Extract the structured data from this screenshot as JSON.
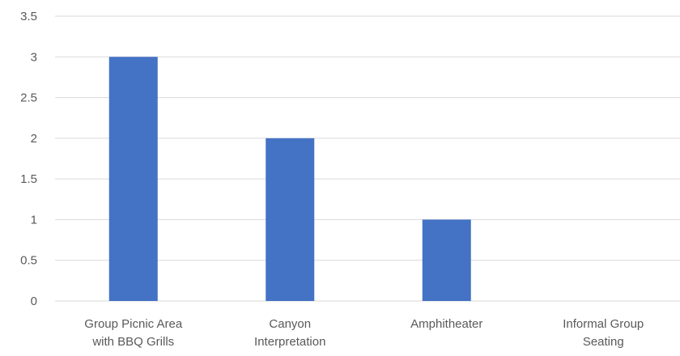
{
  "chart_data": {
    "type": "bar",
    "categories": [
      [
        "Group Picnic Area",
        "with BBQ Grills"
      ],
      [
        "Canyon",
        "Interpretation"
      ],
      [
        "Amphitheater"
      ],
      [
        "Informal Group",
        "Seating"
      ]
    ],
    "values": [
      3,
      2,
      1,
      0
    ],
    "ylim": [
      0,
      3.5
    ],
    "yticks": [
      "0",
      "0.5",
      "1",
      "1.5",
      "2",
      "2.5",
      "3",
      "3.5"
    ],
    "grid": true,
    "bar_color": "#4472C4",
    "title": "",
    "xlabel": "",
    "ylabel": ""
  }
}
